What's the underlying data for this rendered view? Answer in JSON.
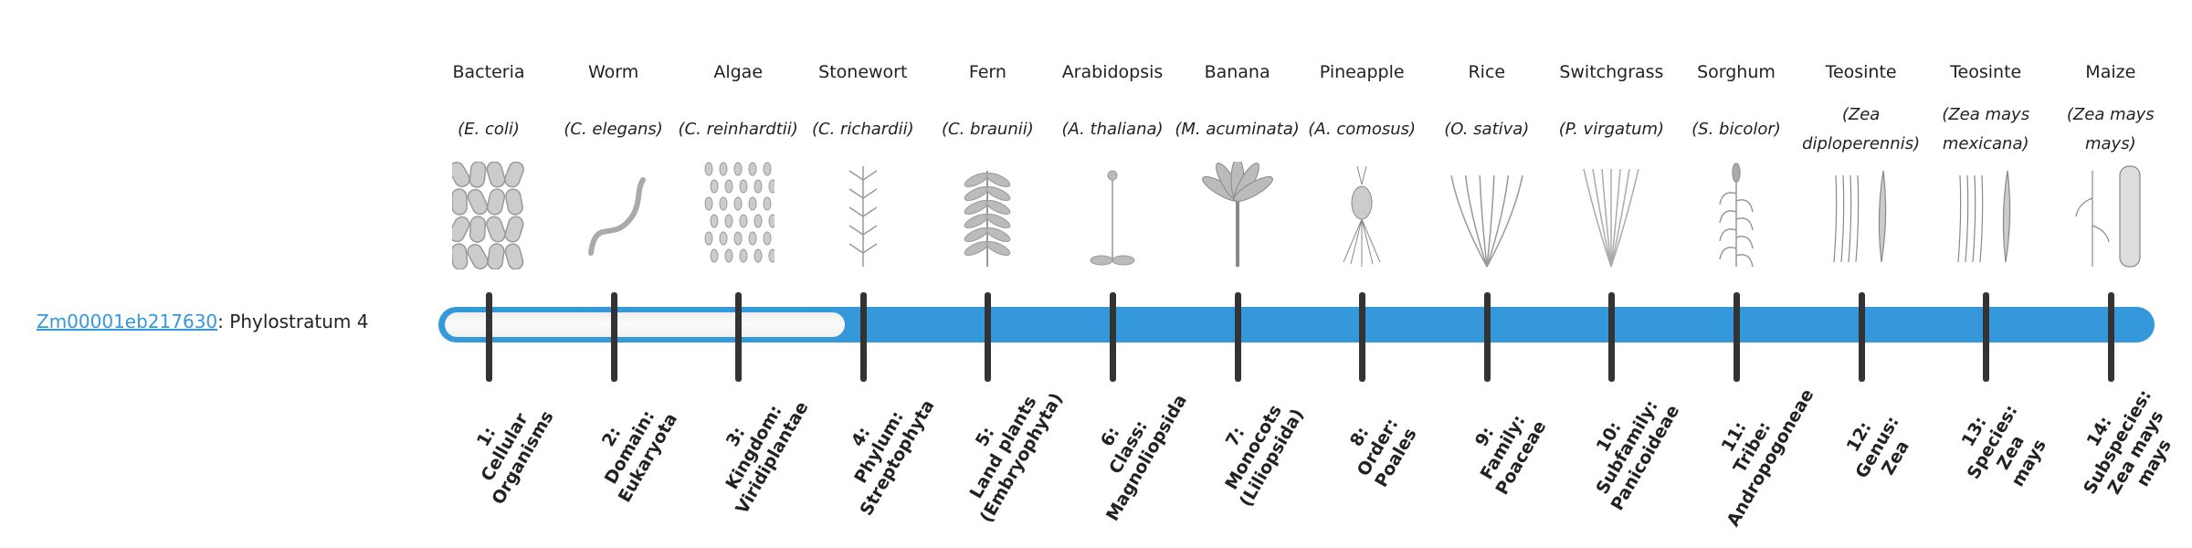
{
  "gene": {
    "id": "Zm00001eb217630",
    "suffix": ": Phylostratum 4"
  },
  "phylostratum": 4,
  "total_strata": 14,
  "colors": {
    "bar": "#3598db",
    "tick": "#333333",
    "link": "#3498db"
  },
  "organisms": [
    {
      "common": "Bacteria",
      "species": "(E. coli)",
      "icon": "bacteria-icon",
      "rank": [
        "1:",
        "Cellular",
        "Organisms"
      ]
    },
    {
      "common": "Worm",
      "species": "(C. elegans)",
      "icon": "worm-icon",
      "rank": [
        "2:",
        "Domain:",
        "Eukaryota"
      ]
    },
    {
      "common": "Algae",
      "species": "(C. reinhardtii)",
      "icon": "algae-icon",
      "rank": [
        "3:",
        "Kingdom:",
        "Viridiplantae"
      ]
    },
    {
      "common": "Stonewort",
      "species": "(C. richardii)",
      "icon": "stonewort-icon",
      "rank": [
        "4:",
        "Phylum:",
        "Streptophyta"
      ]
    },
    {
      "common": "Fern",
      "species": "(C. braunii)",
      "icon": "fern-icon",
      "rank": [
        "5:",
        "Land plants",
        "(Embryophyta)"
      ]
    },
    {
      "common": "Arabidopsis",
      "species": "(A. thaliana)",
      "icon": "arabidopsis-icon",
      "rank": [
        "6:",
        "Class:",
        "Magnoliopsida"
      ]
    },
    {
      "common": "Banana",
      "species": "(M. acuminata)",
      "icon": "banana-icon",
      "rank": [
        "7:",
        "Monocots",
        "(Liliopsida)"
      ]
    },
    {
      "common": "Pineapple",
      "species": "(A. comosus)",
      "icon": "pineapple-icon",
      "rank": [
        "8:",
        "Order:",
        "Poales"
      ]
    },
    {
      "common": "Rice",
      "species": "(O. sativa)",
      "icon": "rice-icon",
      "rank": [
        "9:",
        "Family:",
        "Poaceae"
      ]
    },
    {
      "common": "Switchgrass",
      "species": "(P. virgatum)",
      "icon": "switchgrass-icon",
      "rank": [
        "10:",
        "Subfamily:",
        "Panicoideae"
      ]
    },
    {
      "common": "Sorghum",
      "species": "(S. bicolor)",
      "icon": "sorghum-icon",
      "rank": [
        "11:",
        "Tribe:",
        "Andropogoneae"
      ]
    },
    {
      "common": "Teosinte",
      "species": "(Zea diploperennis)",
      "icon": "teosinte-icon",
      "rank": [
        "12:",
        "Genus:",
        "Zea"
      ]
    },
    {
      "common": "Teosinte",
      "species": "(Zea mays mexicana)",
      "icon": "teosinte-icon",
      "rank": [
        "13:",
        "Species:",
        "Zea",
        "mays"
      ]
    },
    {
      "common": "Maize",
      "species": "(Zea mays mays)",
      "icon": "maize-icon",
      "rank": [
        "14:",
        "Subspecies:",
        "Zea mays",
        "mays"
      ]
    }
  ]
}
